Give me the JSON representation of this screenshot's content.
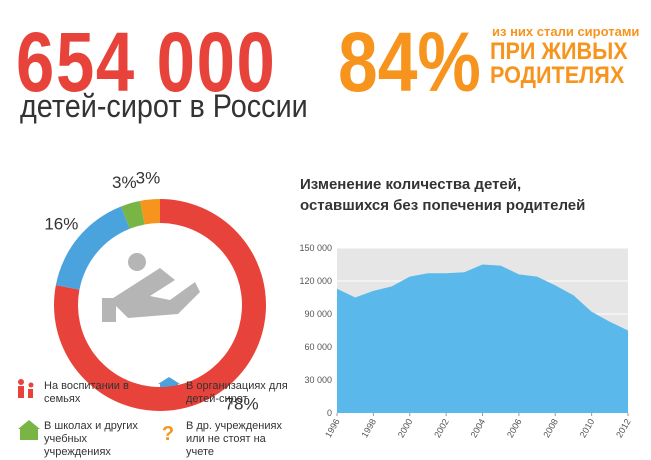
{
  "header": {
    "big_number": "654 000",
    "big_caption": "детей-сирот в России",
    "percent": "84%",
    "percent_note_small": "из них стали сиротами",
    "percent_note_line1": "ПРИ ЖИВЫХ",
    "percent_note_line2": "РОДИТЕЛЯХ"
  },
  "chart_data": [
    {
      "type": "pie",
      "categories": [
        "На воспитании в семьях",
        "В организациях для детей-сирот",
        "В школах и других учебных учреждениях",
        "В др. учреждениях или не стоят на учете"
      ],
      "values": [
        78,
        16,
        3,
        3
      ],
      "value_labels": [
        "78%",
        "16%",
        "3%",
        "3%"
      ],
      "colors": [
        "#e8433a",
        "#4ba3dd",
        "#79b544",
        "#f7941d"
      ]
    },
    {
      "type": "area",
      "title": [
        "Изменение количества детей,",
        "оставшихся без попечения родителей"
      ],
      "x": [
        1996,
        1997,
        1998,
        1999,
        2000,
        2001,
        2002,
        2003,
        2004,
        2005,
        2006,
        2007,
        2008,
        2009,
        2010,
        2011,
        2012
      ],
      "values": [
        113000,
        105000,
        111000,
        115000,
        124000,
        127000,
        127000,
        128000,
        135000,
        134000,
        126000,
        124000,
        116000,
        107000,
        92000,
        83000,
        75000
      ],
      "color": "#5bb8ea",
      "xlim": [
        1996,
        2012
      ],
      "xticks": [
        1996,
        1998,
        2000,
        2002,
        2004,
        2006,
        2008,
        2010,
        2012
      ],
      "ylim": [
        0,
        150000
      ],
      "yticks": [
        0,
        {
          "value": 30000,
          "label": "30 000"
        },
        {
          "value": 60000,
          "label": "60 000"
        },
        {
          "value": 90000,
          "label": "90 000"
        },
        {
          "value": 120000,
          "label": "120 000"
        },
        {
          "value": 150000,
          "label": "150 000"
        }
      ],
      "grid": true
    }
  ]
}
